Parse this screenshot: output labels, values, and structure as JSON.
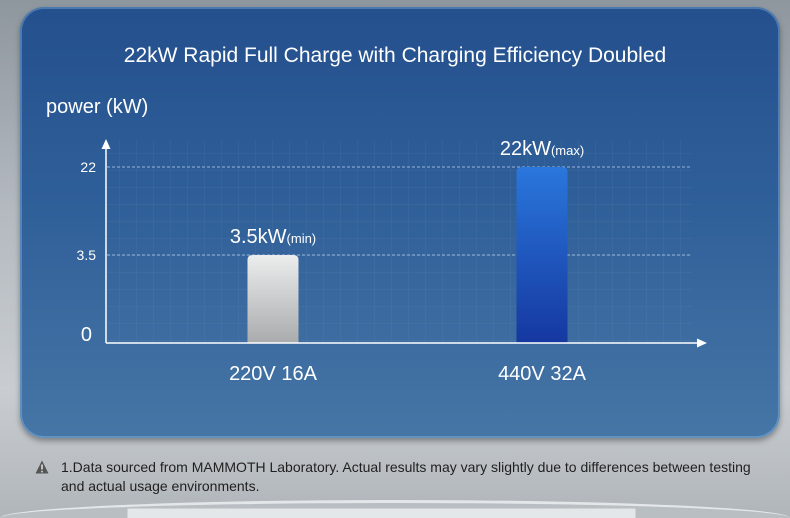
{
  "chart_data": {
    "type": "bar",
    "title": "22kW Rapid Full Charge with Charging Efficiency Doubled",
    "ylabel": "power (kW)",
    "xlabel": "",
    "categories": [
      "220V 16A",
      "440V 32A"
    ],
    "values": [
      3.5,
      22
    ],
    "data_labels": [
      {
        "main": "3.5kW",
        "suffix": "(min)"
      },
      {
        "main": "22kW",
        "suffix": "(max)"
      }
    ],
    "yticks": [
      0,
      3.5,
      22
    ],
    "ytick_labels": [
      "0",
      "3.5",
      "22"
    ],
    "ylim": [
      0,
      22
    ],
    "grid": true,
    "colors": [
      "#c4c6c8",
      "#1f63c8"
    ]
  },
  "footnote": {
    "icon": "warning-icon",
    "text": "1.Data sourced from MAMMOTH Laboratory. Actual results may vary slightly due to differences between testing and actual usage environments."
  }
}
